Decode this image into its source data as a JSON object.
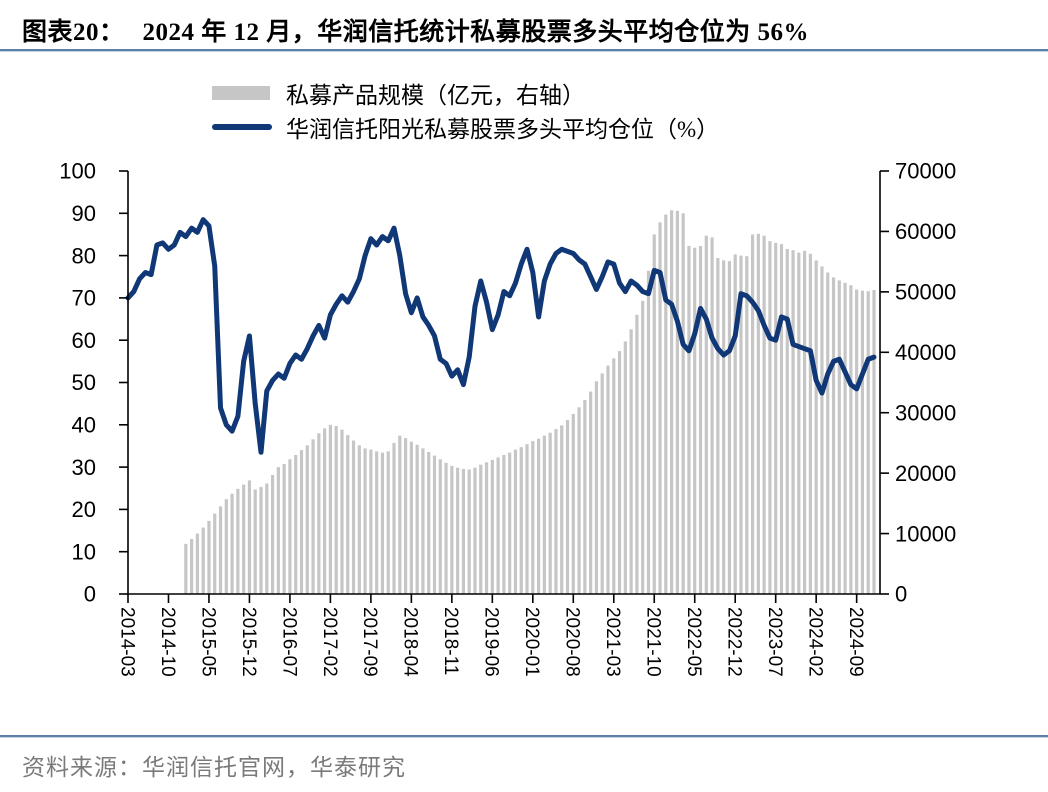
{
  "title": {
    "prefix": "图表20：",
    "text": "2024 年 12 月，华润信托统计私募股票多头平均仓位为 56%"
  },
  "legend": {
    "bar_label": "私募产品规模（亿元，右轴）",
    "line_label": "华润信托阳光私募股票多头平均仓位（%）"
  },
  "footer": {
    "source_text": "资料来源：华润信托官网，华泰研究"
  },
  "colors": {
    "line": "#103776",
    "bar": "#c6c6c6",
    "rule": "#5b80aa",
    "footer_text": "#7a7a7a",
    "axis": "#000000"
  },
  "chart_data": {
    "type": "bar+line",
    "title": "2024 年 12 月，华润信托统计私募股票多头平均仓位为 56%",
    "x_monthly_start": "2014-03",
    "x_tick_labels": [
      "2014-03",
      "2014-10",
      "2015-05",
      "2015-12",
      "2016-07",
      "2017-02",
      "2017-09",
      "2018-04",
      "2018-11",
      "2019-06",
      "2020-01",
      "2020-08",
      "2021-03",
      "2021-10",
      "2022-05",
      "2022-12",
      "2023-07",
      "2024-02",
      "2024-09"
    ],
    "x_tick_month_step": 7,
    "left_axis": {
      "min": 0,
      "max": 100,
      "step": 10,
      "tick_labels": [
        "0",
        "10",
        "20",
        "30",
        "40",
        "50",
        "60",
        "70",
        "80",
        "90",
        "100"
      ]
    },
    "right_axis": {
      "min": 0,
      "max": 70000,
      "step": 10000,
      "tick_labels": [
        "0",
        "10000",
        "20000",
        "30000",
        "40000",
        "50000",
        "60000",
        "70000"
      ]
    },
    "grid": false,
    "legend_position": "top",
    "series": [
      {
        "name": "私募产品规模（亿元，右轴）",
        "type": "bar",
        "axis": "right",
        "start_month_index": 10,
        "values": [
          8300,
          9100,
          10000,
          11000,
          12100,
          13300,
          14500,
          15700,
          16600,
          17400,
          18100,
          18800,
          17300,
          17700,
          18300,
          19700,
          21000,
          21500,
          22300,
          23000,
          23800,
          24600,
          25600,
          26600,
          27400,
          28000,
          27800,
          27200,
          26300,
          25400,
          24600,
          24100,
          23900,
          23600,
          23400,
          23600,
          25000,
          26200,
          25800,
          25200,
          24700,
          24100,
          23500,
          22900,
          22300,
          21700,
          21200,
          20900,
          20700,
          20600,
          20900,
          21400,
          21800,
          22200,
          22600,
          23000,
          23400,
          23900,
          24300,
          24800,
          25300,
          25700,
          26200,
          26700,
          27300,
          27900,
          28800,
          29800,
          30900,
          32100,
          33500,
          35200,
          36500,
          37800,
          39000,
          40200,
          41800,
          43800,
          46200,
          48500,
          53500,
          59500,
          61500,
          62800,
          63500,
          63400,
          63000,
          57600,
          57300,
          57600,
          59300,
          59000,
          55600,
          55200,
          55100,
          56200,
          56000,
          55900,
          59500,
          59600,
          59300,
          58400,
          58100,
          57900,
          57100,
          56900,
          56500,
          56800,
          56300,
          55200,
          54200,
          53200,
          52400,
          51900,
          51500,
          51100,
          50400,
          50200,
          50100,
          50300
        ]
      },
      {
        "name": "华润信托阳光私募股票多头平均仓位（%）",
        "type": "line",
        "axis": "left",
        "start_month_index": 0,
        "values": [
          70,
          71.5,
          74.5,
          76,
          75.5,
          82.5,
          83,
          81.5,
          82.5,
          85.5,
          84.5,
          86.5,
          85.5,
          88.5,
          87,
          77.5,
          44,
          40,
          38.5,
          42,
          55,
          61,
          45,
          33.5,
          48,
          50.5,
          52,
          51,
          54.5,
          56.5,
          55.5,
          58,
          61,
          63.5,
          60.5,
          66,
          68.5,
          70.5,
          69,
          71.5,
          74.5,
          80,
          84,
          82.5,
          84.5,
          83.5,
          86.5,
          80,
          71,
          66.5,
          70,
          65.5,
          63.5,
          61,
          55.5,
          54.5,
          51.5,
          53,
          49.5,
          56,
          68,
          74,
          69,
          62.5,
          66,
          71.5,
          70.5,
          73.5,
          78,
          81.5,
          76,
          65.5,
          74,
          78,
          80.5,
          81.5,
          81,
          80.5,
          79,
          78,
          75,
          72,
          75,
          78.5,
          78,
          73.5,
          71.5,
          74,
          73,
          71.5,
          71,
          76.5,
          76,
          69.5,
          68.5,
          64.5,
          59,
          57.5,
          61.5,
          67.5,
          65,
          60.5,
          58,
          56.5,
          57.5,
          61,
          71,
          70.5,
          69,
          67,
          63.5,
          60.5,
          60,
          65.5,
          65,
          59,
          58.5,
          58,
          57.5,
          50.5,
          47.5,
          52,
          55,
          55.5,
          52.5,
          49.5,
          48.5,
          52,
          55.5,
          56
        ]
      }
    ]
  }
}
